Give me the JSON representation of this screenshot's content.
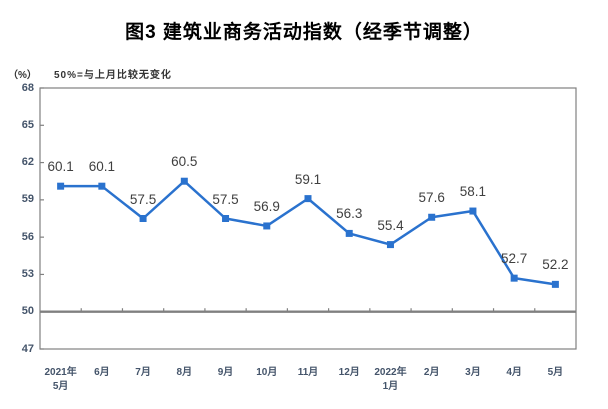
{
  "title": "图3 建筑业商务活动指数（经季节调整）",
  "unit_label": "（%）",
  "note": "50%=与上月比较无变化",
  "colors": {
    "line": "#2A72CE",
    "marker": "#2A72CE",
    "frame": "#808080",
    "baseline": "#808080",
    "tick_label": "#44546A",
    "data_label": "#3F3F3F",
    "title": "#000000",
    "background": "#FFFFFF"
  },
  "chart_data": {
    "type": "line",
    "title": "图3 建筑业商务活动指数（经季节调整）",
    "subtitle": "50%=与上月比较无变化",
    "unit": "（%）",
    "categories": [
      "2021年\n5月",
      "6月",
      "7月",
      "8月",
      "9月",
      "10月",
      "11月",
      "12月",
      "2022年\n1月",
      "2月",
      "3月",
      "4月",
      "5月"
    ],
    "values": [
      60.1,
      60.1,
      57.5,
      60.5,
      57.5,
      56.9,
      59.1,
      56.3,
      55.4,
      57.6,
      58.1,
      52.7,
      52.2
    ],
    "ylim": [
      47,
      68
    ],
    "yticks": [
      47,
      50,
      53,
      56,
      59,
      62,
      65,
      68
    ],
    "baseline": 50,
    "grid": false,
    "legend": false,
    "marker": "square",
    "data_labels_visible": true
  }
}
